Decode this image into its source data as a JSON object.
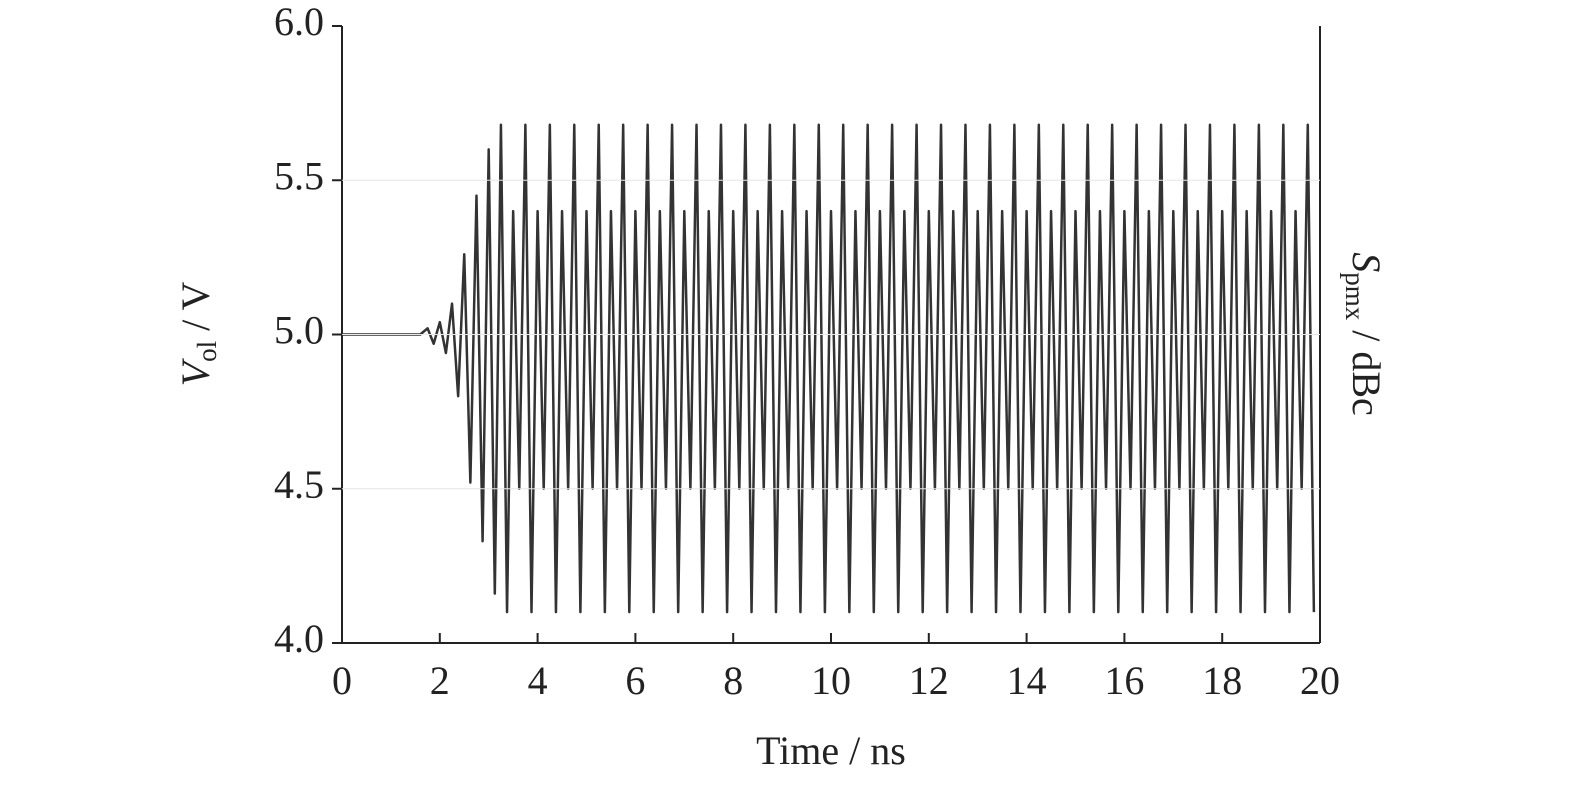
{
  "chart_data": {
    "type": "line",
    "x_label": "Time / ns",
    "y_label": {
      "symbol": "V",
      "subscript": "ol",
      "unit": " / V"
    },
    "y2_label": {
      "symbol": "S",
      "subscript": "pmx",
      "unit": " / dBc"
    },
    "xlim": [
      0,
      20
    ],
    "xticks": [
      0,
      2,
      4,
      6,
      8,
      10,
      12,
      14,
      16,
      18,
      20
    ],
    "ylim": [
      4,
      6
    ],
    "yticks": [
      {
        "value": 4,
        "label": "4.0"
      },
      {
        "value": 4.5,
        "label": "4.5"
      },
      {
        "value": 5,
        "label": "5.0"
      },
      {
        "value": 5.5,
        "label": "5.5"
      },
      {
        "value": 6,
        "label": "6.0"
      }
    ],
    "grid": true,
    "color": "#333333",
    "x": [
      0,
      1.6,
      1.75,
      1.875,
      2,
      2.125,
      2.25,
      2.375,
      2.5,
      2.625,
      2.75,
      2.875,
      3,
      3.125,
      3.25,
      3.375,
      3.5,
      3.625,
      3.75,
      3.875,
      4,
      4.125,
      4.25,
      4.375,
      4.5,
      4.625,
      4.75,
      4.875,
      5,
      5.125,
      5.25,
      5.375,
      5.5,
      5.625,
      5.75,
      5.875,
      6,
      6.125,
      6.25,
      6.375,
      6.5,
      6.625,
      6.75,
      6.875,
      7,
      7.125,
      7.25,
      7.375,
      7.5,
      7.625,
      7.75,
      7.875,
      8,
      8.125,
      8.25,
      8.375,
      8.5,
      8.625,
      8.75,
      8.875,
      9,
      9.125,
      9.25,
      9.375,
      9.5,
      9.625,
      9.75,
      9.875,
      10,
      10.125,
      10.25,
      10.375,
      10.5,
      10.625,
      10.75,
      10.875,
      11,
      11.125,
      11.25,
      11.375,
      11.5,
      11.625,
      11.75,
      11.875,
      12,
      12.125,
      12.25,
      12.375,
      12.5,
      12.625,
      12.75,
      12.875,
      13,
      13.125,
      13.25,
      13.375,
      13.5,
      13.625,
      13.75,
      13.875,
      14,
      14.125,
      14.25,
      14.375,
      14.5,
      14.625,
      14.75,
      14.875,
      15,
      15.125,
      15.25,
      15.375,
      15.5,
      15.625,
      15.75,
      15.875,
      16,
      16.125,
      16.25,
      16.375,
      16.5,
      16.625,
      16.75,
      16.875,
      17,
      17.125,
      17.25,
      17.375,
      17.5,
      17.625,
      17.75,
      17.875,
      18,
      18.125,
      18.25,
      18.375,
      18.5,
      18.625,
      18.75,
      18.875,
      19,
      19.125,
      19.25,
      19.375,
      19.5,
      19.625,
      19.75,
      19.875
    ],
    "values": [
      5.0,
      5.0,
      5.02,
      4.97,
      5.04,
      4.94,
      5.1,
      4.8,
      5.26,
      4.52,
      5.45,
      4.33,
      5.6,
      4.16,
      5.68,
      4.1,
      5.4,
      4.5,
      5.68,
      4.1,
      5.4,
      4.5,
      5.68,
      4.1,
      5.4,
      4.5,
      5.68,
      4.1,
      5.4,
      4.5,
      5.68,
      4.1,
      5.4,
      4.5,
      5.68,
      4.1,
      5.4,
      4.5,
      5.68,
      4.1,
      5.4,
      4.5,
      5.68,
      4.1,
      5.4,
      4.5,
      5.68,
      4.1,
      5.4,
      4.5,
      5.68,
      4.1,
      5.4,
      4.5,
      5.68,
      4.1,
      5.4,
      4.5,
      5.68,
      4.1,
      5.4,
      4.5,
      5.68,
      4.1,
      5.4,
      4.5,
      5.68,
      4.1,
      5.4,
      4.5,
      5.68,
      4.1,
      5.4,
      4.5,
      5.68,
      4.1,
      5.4,
      4.5,
      5.68,
      4.1,
      5.4,
      4.5,
      5.68,
      4.1,
      5.4,
      4.5,
      5.68,
      4.1,
      5.4,
      4.5,
      5.68,
      4.1,
      5.4,
      4.5,
      5.68,
      4.1,
      5.4,
      4.5,
      5.68,
      4.1,
      5.4,
      4.5,
      5.68,
      4.1,
      5.4,
      4.5,
      5.68,
      4.1,
      5.4,
      4.5,
      5.68,
      4.1,
      5.4,
      4.5,
      5.68,
      4.1,
      5.4,
      4.5,
      5.68,
      4.1,
      5.4,
      4.5,
      5.68,
      4.1,
      5.4,
      4.5,
      5.68,
      4.1,
      5.4,
      4.5,
      5.68,
      4.1,
      5.4,
      4.5,
      5.68,
      4.1,
      5.4,
      4.5,
      5.68,
      4.1,
      5.4,
      4.5,
      5.68,
      4.1,
      5.4,
      4.5,
      5.68,
      4.1
    ]
  }
}
